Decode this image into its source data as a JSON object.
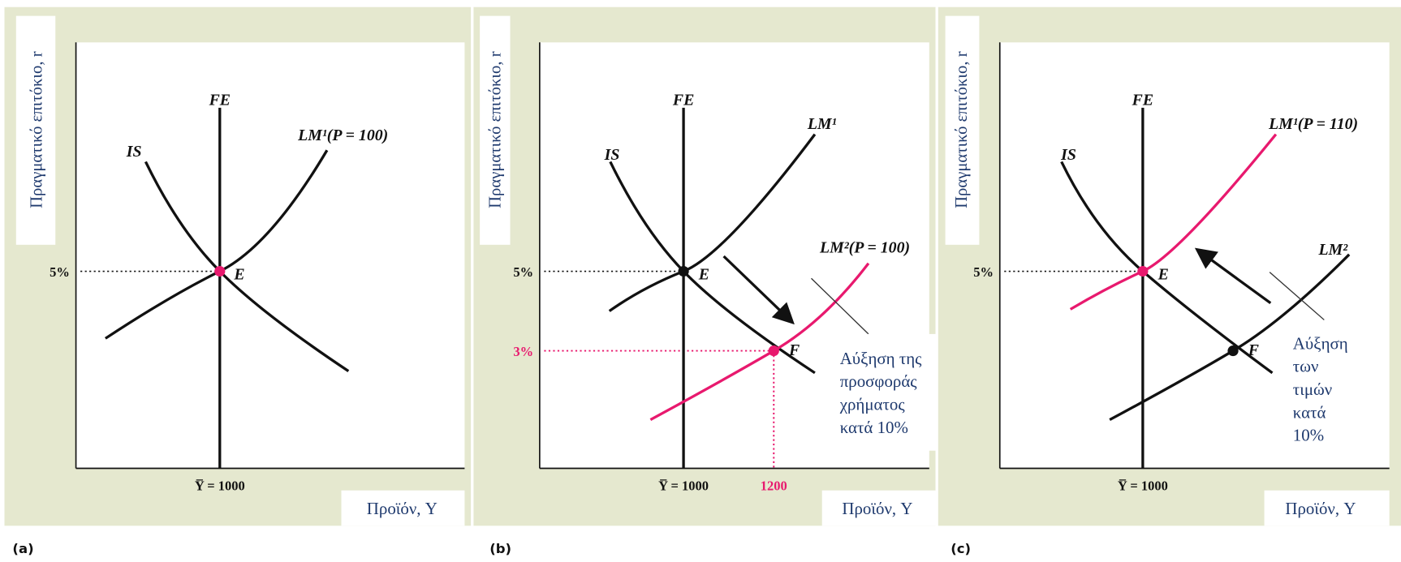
{
  "panels": [
    {
      "tag": "(a)",
      "y_label": "Πραγματικό επιτόκιο, r",
      "x_label": "Προϊόν, Y",
      "fe_label": "FE",
      "is_label": "IS",
      "lm_labels": [
        "LM¹(P = 100)"
      ],
      "point_labels": [
        "E"
      ],
      "y_ticks": [
        "5%"
      ],
      "x_ticks": [
        "Y̅ = 1000"
      ]
    },
    {
      "tag": "(b)",
      "y_label": "Πραγματικό επιτόκιο, r",
      "x_label": "Προϊόν, Y",
      "fe_label": "FE",
      "is_label": "IS",
      "lm_labels": [
        "LM¹",
        "LM²(P = 100)"
      ],
      "point_labels": [
        "E",
        "F"
      ],
      "y_ticks": [
        "5%",
        "3%"
      ],
      "x_ticks": [
        "Y̅ = 1000",
        "1200"
      ],
      "note": [
        "Αύξηση της",
        "προσφοράς",
        "χρήματος",
        "κατά 10%"
      ]
    },
    {
      "tag": "(c)",
      "y_label": "Πραγματικό επιτόκιο, r",
      "x_label": "Προϊόν, Y",
      "fe_label": "FE",
      "is_label": "IS",
      "lm_labels": [
        "LM¹(P = 110)",
        "LM²"
      ],
      "point_labels": [
        "E",
        "F"
      ],
      "y_ticks": [
        "5%"
      ],
      "x_ticks": [
        "Y̅ = 1000"
      ],
      "note": [
        "Αύξηση",
        "των",
        "τιμών",
        "κατά",
        "10%"
      ]
    }
  ]
}
